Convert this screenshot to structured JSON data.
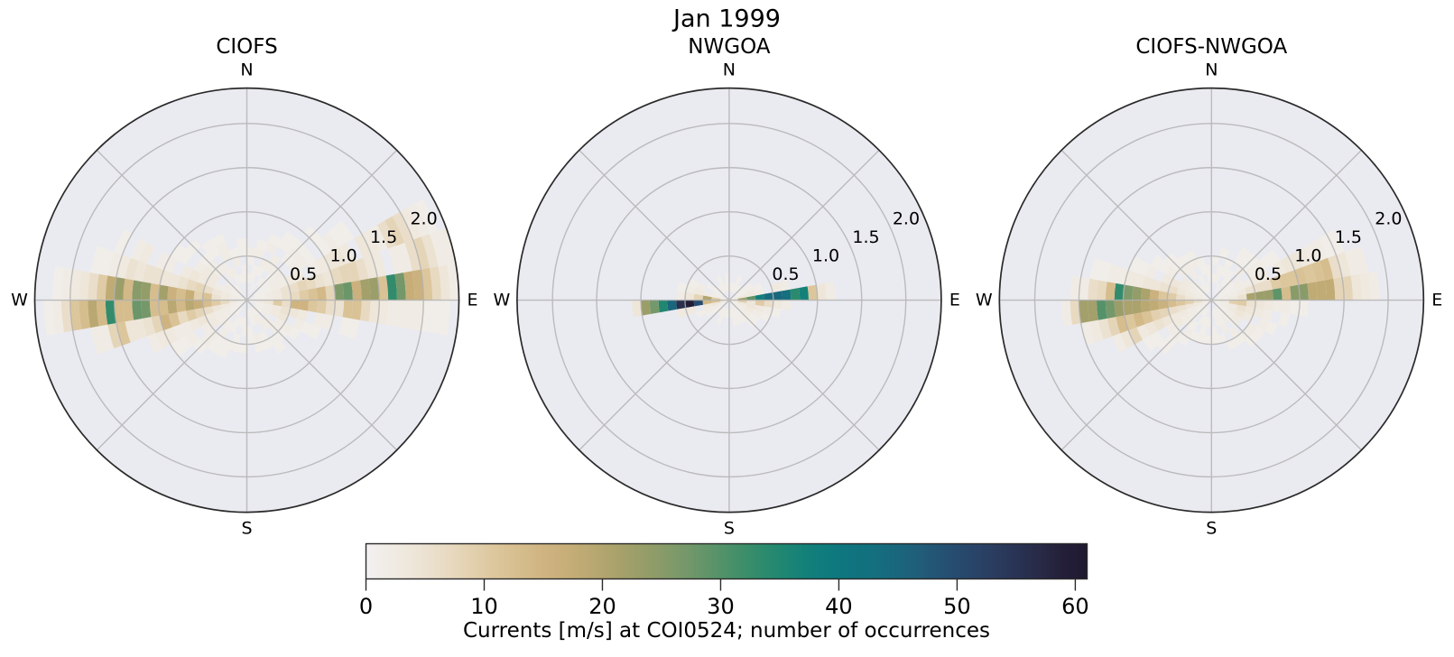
{
  "suptitle": "Jan 1999",
  "chart_data": {
    "type": "heatmap",
    "variant": "polar-2d-histogram-current-rose",
    "suptitle": "Jan 1999",
    "angle_units": "degrees CCW from East",
    "direction_bin_deg": 10,
    "speed_bin_width": 0.1,
    "r_max": 2.4,
    "r_ticks": [
      "0.5",
      "1.0",
      "1.5",
      "2.0"
    ],
    "compass": {
      "n": "N",
      "e": "E",
      "s": "S",
      "w": "W"
    },
    "grid": true,
    "legend_position": "bottom-colorbar",
    "colormap": {
      "name": "rain-like (white-tan-green-teal-navy)",
      "vmin": 0,
      "vmax": 61,
      "stops": [
        [
          0,
          "#f2f0f3"
        ],
        [
          1,
          "#f1eeea"
        ],
        [
          3,
          "#efe9df"
        ],
        [
          5,
          "#ece2d2"
        ],
        [
          7,
          "#e8dac1"
        ],
        [
          9,
          "#e2d0ae"
        ],
        [
          11,
          "#dcc69c"
        ],
        [
          13,
          "#d6bd8d"
        ],
        [
          15,
          "#cfb481"
        ],
        [
          17,
          "#c7ae78"
        ],
        [
          19,
          "#baa872"
        ],
        [
          21,
          "#aba26c"
        ],
        [
          23,
          "#9b9e69"
        ],
        [
          25,
          "#899b69"
        ],
        [
          27,
          "#75986a"
        ],
        [
          29,
          "#5f9469"
        ],
        [
          31,
          "#489069"
        ],
        [
          33,
          "#328c6b"
        ],
        [
          35,
          "#218771"
        ],
        [
          37,
          "#148179"
        ],
        [
          39,
          "#0e7b7e"
        ],
        [
          41,
          "#0f747f"
        ],
        [
          43,
          "#146f7e"
        ],
        [
          45,
          "#1a667c"
        ],
        [
          47,
          "#215c78"
        ],
        [
          49,
          "#255072"
        ],
        [
          51,
          "#28466a"
        ],
        [
          53,
          "#2a3d60"
        ],
        [
          55,
          "#293354"
        ],
        [
          57,
          "#282a46"
        ],
        [
          59,
          "#241f39"
        ],
        [
          61,
          "#1f1830"
        ]
      ]
    },
    "colorbar": {
      "label": "Currents [m/s] at COI0524; number of occurrences",
      "ticks": [
        "0",
        "10",
        "20",
        "30",
        "40",
        "50",
        "60"
      ],
      "tick_values": [
        0,
        10,
        20,
        30,
        40,
        50,
        60
      ]
    },
    "subplots": [
      {
        "title": "CIOFS",
        "bins": {
          "0": [
            1,
            1,
            2,
            3,
            5,
            7,
            10,
            12,
            14,
            8,
            26,
            28,
            16,
            22,
            23,
            12,
            33,
            27,
            17,
            16,
            11,
            7,
            4,
            2
          ],
          "1": [
            1,
            1,
            2,
            3,
            5,
            6,
            8,
            7,
            5,
            4,
            7,
            8,
            8,
            6,
            4,
            3,
            0,
            2,
            2,
            6,
            8,
            5,
            2,
            2
          ],
          "2": [
            0,
            1,
            1,
            2,
            2,
            3,
            3,
            0,
            2,
            3,
            4,
            4,
            3,
            0,
            4,
            3,
            2,
            6,
            8,
            6,
            3,
            2,
            1
          ],
          "3": [
            0,
            1,
            1,
            2,
            2,
            0,
            2,
            2,
            1,
            0,
            1,
            2,
            1,
            1
          ],
          "4": [
            0,
            0,
            1,
            1,
            2,
            0,
            1,
            2,
            1,
            0,
            1
          ],
          "5": [
            0,
            0,
            1,
            0,
            2,
            2,
            0,
            1,
            1
          ],
          "6": [
            0,
            1,
            0,
            1,
            2,
            0,
            2,
            1
          ],
          "7": [
            0,
            0,
            1,
            1,
            0,
            2,
            1
          ],
          "8": [
            0,
            0,
            1,
            0,
            1,
            2
          ],
          "9": [
            0,
            0,
            1,
            1,
            0,
            1,
            1
          ],
          "10": [
            0,
            0,
            1,
            0,
            2,
            1
          ],
          "11": [
            0,
            0,
            1,
            2,
            0,
            2,
            2,
            1
          ],
          "12": [
            0,
            1,
            0,
            2,
            2,
            0,
            1,
            1
          ],
          "13": [
            0,
            1,
            1,
            0,
            2,
            2,
            1,
            0,
            1
          ],
          "14": [
            0,
            1,
            2,
            0,
            3,
            3,
            2,
            0,
            1,
            1
          ],
          "15": [
            1,
            1,
            2,
            2,
            3,
            3,
            4,
            3,
            0,
            2,
            2,
            0,
            3,
            2,
            0,
            1
          ],
          "16": [
            1,
            2,
            3,
            4,
            6,
            8,
            7,
            5,
            4,
            4,
            5,
            5,
            4,
            5,
            3,
            2,
            1,
            1
          ],
          "17": [
            1,
            2,
            3,
            5,
            12,
            9,
            17,
            13,
            16,
            22,
            13,
            24,
            25,
            14,
            23,
            18,
            10,
            6,
            4,
            3,
            2,
            1
          ],
          "18": [
            2,
            4,
            7,
            10,
            13,
            17,
            19,
            14,
            19,
            13,
            13,
            27,
            28,
            13,
            13,
            33,
            14,
            19,
            13,
            11,
            6,
            2,
            1
          ],
          "19": [
            1,
            2,
            3,
            4,
            6,
            8,
            10,
            7,
            12,
            15,
            8,
            5,
            4,
            4,
            11,
            8,
            2,
            2
          ],
          "20": [
            1,
            1,
            2,
            2,
            3,
            4,
            3,
            2,
            2,
            3,
            3,
            2
          ],
          "21": [
            1,
            1,
            2,
            2,
            3,
            2,
            0,
            2,
            1,
            1
          ],
          "22": [
            0,
            1,
            1,
            2,
            0,
            2,
            2,
            1
          ],
          "23": [
            0,
            1,
            0,
            1,
            2,
            1,
            1
          ],
          "24": [
            0,
            0,
            1,
            1,
            0,
            1,
            1
          ],
          "25": [
            0,
            0,
            1,
            0,
            1,
            1
          ],
          "26": [
            0,
            0,
            1,
            1,
            0,
            1
          ],
          "27": [
            0,
            1,
            0,
            1,
            1
          ],
          "28": [
            0,
            1,
            1,
            0,
            2,
            1
          ],
          "29": [
            0,
            1,
            2,
            0,
            1,
            1
          ],
          "30": [
            0,
            1,
            2,
            2,
            0,
            1,
            1
          ],
          "31": [
            0,
            1,
            0,
            2,
            2,
            1
          ],
          "32": [
            0,
            1,
            2,
            0,
            2,
            2,
            1
          ],
          "33": [
            0,
            1,
            2,
            3,
            4,
            0,
            2,
            1,
            1
          ],
          "34": [
            1,
            1,
            2,
            3,
            5,
            4,
            3,
            0,
            2,
            2,
            0,
            1,
            1
          ],
          "35": [
            2,
            3,
            4,
            10,
            6,
            15,
            15,
            11,
            10,
            6,
            5,
            12,
            12,
            7,
            4,
            3,
            2,
            2,
            2,
            2,
            1,
            1,
            1
          ]
        }
      },
      {
        "title": "NWGOA",
        "bins": {
          "0": [
            5,
            22,
            29,
            38,
            44,
            45,
            43,
            34,
            37,
            11,
            4,
            2
          ],
          "1": [
            2,
            3,
            3,
            2,
            0,
            3,
            2
          ],
          "2": [
            1,
            1,
            2,
            1
          ],
          "3": [
            0,
            1,
            1
          ],
          "4": [
            0,
            1
          ],
          "5": [
            0,
            1
          ],
          "6": [
            0,
            1,
            1
          ],
          "7": [
            0,
            1
          ],
          "8": [
            0,
            1
          ],
          "9": [
            0,
            1,
            1
          ],
          "10": [
            0,
            1
          ],
          "11": [
            0,
            1,
            1
          ],
          "12": [
            0,
            1
          ],
          "13": [
            0,
            1
          ],
          "14": [
            0,
            1,
            1
          ],
          "15": [
            1,
            1,
            0,
            2,
            1
          ],
          "16": [
            1,
            2,
            2,
            3,
            2,
            1
          ],
          "17": [
            4,
            10,
            20,
            8,
            4,
            2
          ],
          "18": [
            6,
            12,
            14,
            50,
            60,
            56,
            45,
            35,
            27,
            23,
            4
          ],
          "19": [
            3,
            4,
            3,
            0,
            3,
            3
          ],
          "20": [
            1,
            2,
            2,
            1
          ],
          "21": [
            1,
            1,
            1
          ],
          "22": [
            0,
            1
          ],
          "23": [
            0,
            1
          ],
          "24": [
            0,
            1,
            1
          ],
          "25": [
            0,
            1
          ],
          "26": [
            0,
            1
          ],
          "27": [
            1,
            1
          ],
          "28": [
            1,
            1,
            1
          ],
          "29": [
            0,
            1,
            1
          ],
          "30": [
            1,
            1,
            1
          ],
          "31": [
            1,
            1,
            2,
            1
          ],
          "32": [
            1,
            2,
            2,
            1
          ],
          "33": [
            1,
            2,
            3,
            2,
            1
          ],
          "34": [
            2,
            3,
            4,
            3,
            2,
            1
          ],
          "35": [
            3,
            9,
            4,
            10,
            6,
            3,
            2
          ]
        }
      },
      {
        "title": "CIOFS-NWGOA",
        "bins": {
          "0": [
            1,
            2,
            3,
            5,
            21,
            23,
            23,
            29,
            13,
            25,
            25,
            18,
            18,
            18,
            8,
            8,
            4,
            3,
            2
          ],
          "1": [
            1,
            2,
            2,
            3,
            5,
            6,
            6,
            10,
            11,
            11,
            12,
            11,
            12,
            13,
            6,
            4,
            2,
            2
          ],
          "2": [
            0,
            1,
            1,
            2,
            2,
            3,
            3,
            0,
            3,
            4,
            4,
            3,
            2,
            2,
            1,
            1
          ],
          "3": [
            0,
            1,
            1,
            2,
            0,
            2,
            2,
            1,
            1
          ],
          "4": [
            0,
            1,
            1,
            0,
            2,
            1,
            1
          ],
          "5": [
            0,
            0,
            1,
            1,
            0,
            1,
            1
          ],
          "6": [
            0,
            1,
            0,
            1,
            1
          ],
          "7": [
            0,
            0,
            1,
            1,
            0,
            1
          ],
          "8": [
            0,
            0,
            1,
            0,
            1
          ],
          "9": [
            0,
            0,
            1,
            1
          ],
          "10": [
            0,
            1,
            0,
            1,
            1
          ],
          "11": [
            0,
            1,
            1,
            0,
            2,
            1
          ],
          "12": [
            0,
            1,
            0,
            2,
            2,
            1
          ],
          "13": [
            0,
            1,
            2,
            0,
            2,
            1,
            1
          ],
          "14": [
            1,
            1,
            2,
            3,
            0,
            2,
            1,
            1
          ],
          "15": [
            1,
            2,
            2,
            3,
            4,
            3,
            0,
            2,
            1,
            1
          ],
          "16": [
            1,
            2,
            3,
            4,
            6,
            5,
            4,
            4,
            3,
            3,
            2,
            2,
            1,
            1
          ],
          "17": [
            2,
            3,
            4,
            6,
            10,
            11,
            16,
            21,
            24,
            26,
            33,
            13,
            7,
            6,
            2,
            2
          ],
          "18": [
            3,
            6,
            9,
            11,
            13,
            16,
            18,
            19,
            21,
            21,
            23,
            27,
            30,
            22,
            22,
            7,
            2
          ],
          "19": [
            2,
            3,
            4,
            5,
            6,
            8,
            9,
            12,
            14,
            11,
            13,
            8,
            5,
            3,
            2
          ],
          "20": [
            1,
            2,
            2,
            3,
            3,
            4,
            5,
            4,
            3,
            8,
            4,
            2
          ],
          "21": [
            1,
            1,
            2,
            2,
            3,
            2,
            0,
            1,
            1
          ],
          "22": [
            0,
            1,
            1,
            2,
            0,
            2,
            1,
            1
          ],
          "23": [
            0,
            1,
            0,
            1,
            2,
            1
          ],
          "24": [
            0,
            1,
            1,
            0,
            1
          ],
          "25": [
            0,
            0,
            1,
            1,
            1
          ],
          "26": [
            0,
            0,
            1,
            0,
            1
          ],
          "27": [
            0,
            1,
            0,
            1,
            1
          ],
          "28": [
            0,
            1,
            1,
            0,
            1
          ],
          "29": [
            0,
            1,
            1,
            2,
            0,
            1
          ],
          "30": [
            0,
            1,
            2,
            0,
            2,
            1
          ],
          "31": [
            0,
            1,
            2,
            2,
            0,
            2,
            1
          ],
          "32": [
            1,
            1,
            2,
            3,
            0,
            2,
            1
          ],
          "33": [
            1,
            2,
            3,
            4,
            3,
            0,
            2,
            1
          ],
          "34": [
            1,
            2,
            3,
            5,
            4,
            3,
            2,
            0,
            1
          ],
          "35": [
            2,
            3,
            9,
            10,
            5,
            4,
            3,
            2,
            2,
            1,
            1
          ]
        }
      }
    ]
  },
  "style": {
    "axes_background": "#eaeaf1",
    "grid_color": "#b0b0b0",
    "spine_color": "#2a2a2a",
    "text_color": "#000000"
  }
}
